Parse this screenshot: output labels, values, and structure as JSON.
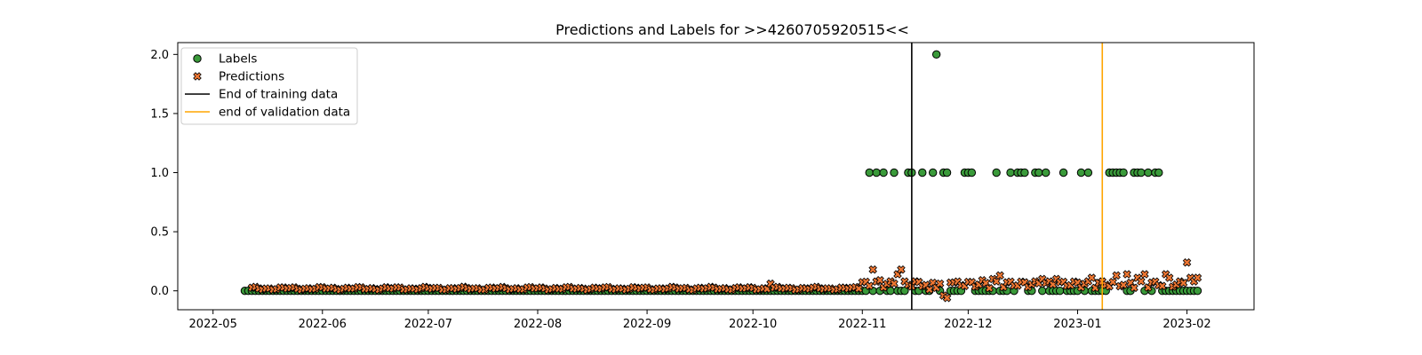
{
  "chart_data": {
    "type": "scatter",
    "title": "Predictions and Labels for >>4260705920515<<",
    "xlabel": "",
    "ylabel": "",
    "x_range": [
      "2022-04-21",
      "2023-02-20"
    ],
    "x_ticks": [
      "2022-05-01",
      "2022-06-01",
      "2022-07-01",
      "2022-08-01",
      "2022-09-01",
      "2022-10-01",
      "2022-11-01",
      "2022-12-01",
      "2023-01-01",
      "2023-02-01"
    ],
    "x_tick_labels": [
      "2022-05",
      "2022-06",
      "2022-07",
      "2022-08",
      "2022-09",
      "2022-10",
      "2022-11",
      "2022-12",
      "2023-01",
      "2023-02"
    ],
    "ylim": [
      -0.16,
      2.1
    ],
    "y_ticks": [
      0.0,
      0.5,
      1.0,
      1.5,
      2.0
    ],
    "y_tick_labels": [
      "0.0",
      "0.5",
      "1.0",
      "1.5",
      "2.0"
    ],
    "grid": false,
    "legend_position": "top-left",
    "vertical_lines": [
      {
        "name": "End of training data",
        "x": "2022-11-15",
        "color": "#000000"
      },
      {
        "name": "end of validation data",
        "x": "2023-01-08",
        "color": "#ffa500"
      }
    ],
    "series": [
      {
        "name": "Labels",
        "marker": "circle",
        "color": "#3a9a3a",
        "date_range": [
          "2022-05-10",
          "2023-02-04"
        ],
        "default_value": 0,
        "points_at_one": [
          "2022-11-03",
          "2022-11-05",
          "2022-11-07",
          "2022-11-10",
          "2022-11-14",
          "2022-11-15",
          "2022-11-18",
          "2022-11-21",
          "2022-11-24",
          "2022-11-25",
          "2022-11-30",
          "2022-12-01",
          "2022-12-02",
          "2022-12-09",
          "2022-12-13",
          "2022-12-15",
          "2022-12-16",
          "2022-12-17",
          "2022-12-20",
          "2022-12-21",
          "2022-12-23",
          "2022-12-28",
          "2023-01-02",
          "2023-01-04",
          "2023-01-10",
          "2023-01-11",
          "2023-01-12",
          "2023-01-13",
          "2023-01-14",
          "2023-01-17",
          "2023-01-18",
          "2023-01-19",
          "2023-01-21",
          "2023-01-23",
          "2023-01-24"
        ],
        "points_at_two": [
          "2022-11-22"
        ]
      },
      {
        "name": "Predictions",
        "marker": "x",
        "color": "#ee7733",
        "date_range": [
          "2022-05-12",
          "2023-02-04"
        ],
        "baseline": 0.02,
        "notable_points": [
          {
            "x": "2022-10-06",
            "y": 0.06
          },
          {
            "x": "2022-11-04",
            "y": 0.18
          },
          {
            "x": "2022-11-06",
            "y": 0.09
          },
          {
            "x": "2022-11-11",
            "y": 0.14
          },
          {
            "x": "2022-11-12",
            "y": 0.18
          },
          {
            "x": "2022-11-16",
            "y": 0.08
          },
          {
            "x": "2022-11-20",
            "y": 0.01
          },
          {
            "x": "2022-11-24",
            "y": -0.04
          },
          {
            "x": "2022-11-25",
            "y": -0.06
          },
          {
            "x": "2022-11-26",
            "y": 0.07
          },
          {
            "x": "2022-12-05",
            "y": 0.09
          },
          {
            "x": "2022-12-08",
            "y": 0.1
          },
          {
            "x": "2022-12-10",
            "y": 0.13
          },
          {
            "x": "2022-12-22",
            "y": 0.1
          },
          {
            "x": "2022-12-26",
            "y": 0.1
          },
          {
            "x": "2023-01-05",
            "y": 0.11
          },
          {
            "x": "2023-01-12",
            "y": 0.13
          },
          {
            "x": "2023-01-15",
            "y": 0.14
          },
          {
            "x": "2023-01-18",
            "y": 0.11
          },
          {
            "x": "2023-01-20",
            "y": 0.14
          },
          {
            "x": "2023-01-26",
            "y": 0.14
          },
          {
            "x": "2023-01-27",
            "y": 0.11
          },
          {
            "x": "2023-02-01",
            "y": 0.24
          },
          {
            "x": "2023-02-02",
            "y": 0.11
          },
          {
            "x": "2023-02-04",
            "y": 0.11
          }
        ]
      }
    ]
  }
}
